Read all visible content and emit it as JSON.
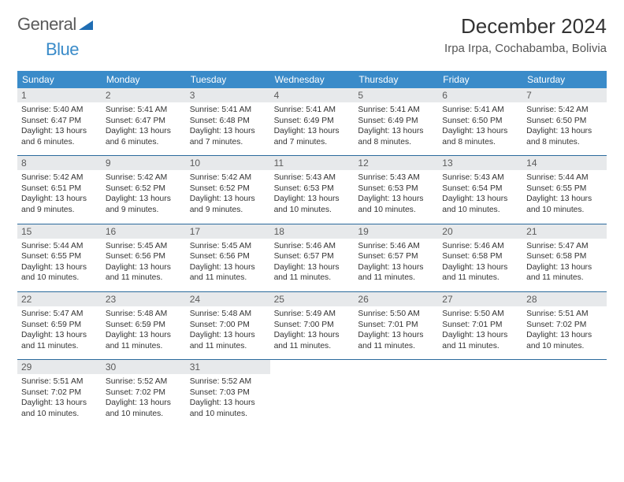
{
  "brand": {
    "part1": "General",
    "part2": "Blue"
  },
  "title": "December 2024",
  "location": "Irpa Irpa, Cochabamba, Bolivia",
  "colors": {
    "header_bg": "#3a8bc9",
    "header_text": "#ffffff",
    "daynum_bg": "#e7e9eb",
    "rule": "#2b6a9c",
    "brand_blue": "#3a8bc9",
    "brand_gray": "#5a5a5a"
  },
  "daynames": [
    "Sunday",
    "Monday",
    "Tuesday",
    "Wednesday",
    "Thursday",
    "Friday",
    "Saturday"
  ],
  "weeks": [
    [
      {
        "n": "1",
        "sr": "5:40 AM",
        "ss": "6:47 PM",
        "dl": "13 hours and 6 minutes."
      },
      {
        "n": "2",
        "sr": "5:41 AM",
        "ss": "6:47 PM",
        "dl": "13 hours and 6 minutes."
      },
      {
        "n": "3",
        "sr": "5:41 AM",
        "ss": "6:48 PM",
        "dl": "13 hours and 7 minutes."
      },
      {
        "n": "4",
        "sr": "5:41 AM",
        "ss": "6:49 PM",
        "dl": "13 hours and 7 minutes."
      },
      {
        "n": "5",
        "sr": "5:41 AM",
        "ss": "6:49 PM",
        "dl": "13 hours and 8 minutes."
      },
      {
        "n": "6",
        "sr": "5:41 AM",
        "ss": "6:50 PM",
        "dl": "13 hours and 8 minutes."
      },
      {
        "n": "7",
        "sr": "5:42 AM",
        "ss": "6:50 PM",
        "dl": "13 hours and 8 minutes."
      }
    ],
    [
      {
        "n": "8",
        "sr": "5:42 AM",
        "ss": "6:51 PM",
        "dl": "13 hours and 9 minutes."
      },
      {
        "n": "9",
        "sr": "5:42 AM",
        "ss": "6:52 PM",
        "dl": "13 hours and 9 minutes."
      },
      {
        "n": "10",
        "sr": "5:42 AM",
        "ss": "6:52 PM",
        "dl": "13 hours and 9 minutes."
      },
      {
        "n": "11",
        "sr": "5:43 AM",
        "ss": "6:53 PM",
        "dl": "13 hours and 10 minutes."
      },
      {
        "n": "12",
        "sr": "5:43 AM",
        "ss": "6:53 PM",
        "dl": "13 hours and 10 minutes."
      },
      {
        "n": "13",
        "sr": "5:43 AM",
        "ss": "6:54 PM",
        "dl": "13 hours and 10 minutes."
      },
      {
        "n": "14",
        "sr": "5:44 AM",
        "ss": "6:55 PM",
        "dl": "13 hours and 10 minutes."
      }
    ],
    [
      {
        "n": "15",
        "sr": "5:44 AM",
        "ss": "6:55 PM",
        "dl": "13 hours and 10 minutes."
      },
      {
        "n": "16",
        "sr": "5:45 AM",
        "ss": "6:56 PM",
        "dl": "13 hours and 11 minutes."
      },
      {
        "n": "17",
        "sr": "5:45 AM",
        "ss": "6:56 PM",
        "dl": "13 hours and 11 minutes."
      },
      {
        "n": "18",
        "sr": "5:46 AM",
        "ss": "6:57 PM",
        "dl": "13 hours and 11 minutes."
      },
      {
        "n": "19",
        "sr": "5:46 AM",
        "ss": "6:57 PM",
        "dl": "13 hours and 11 minutes."
      },
      {
        "n": "20",
        "sr": "5:46 AM",
        "ss": "6:58 PM",
        "dl": "13 hours and 11 minutes."
      },
      {
        "n": "21",
        "sr": "5:47 AM",
        "ss": "6:58 PM",
        "dl": "13 hours and 11 minutes."
      }
    ],
    [
      {
        "n": "22",
        "sr": "5:47 AM",
        "ss": "6:59 PM",
        "dl": "13 hours and 11 minutes."
      },
      {
        "n": "23",
        "sr": "5:48 AM",
        "ss": "6:59 PM",
        "dl": "13 hours and 11 minutes."
      },
      {
        "n": "24",
        "sr": "5:48 AM",
        "ss": "7:00 PM",
        "dl": "13 hours and 11 minutes."
      },
      {
        "n": "25",
        "sr": "5:49 AM",
        "ss": "7:00 PM",
        "dl": "13 hours and 11 minutes."
      },
      {
        "n": "26",
        "sr": "5:50 AM",
        "ss": "7:01 PM",
        "dl": "13 hours and 11 minutes."
      },
      {
        "n": "27",
        "sr": "5:50 AM",
        "ss": "7:01 PM",
        "dl": "13 hours and 11 minutes."
      },
      {
        "n": "28",
        "sr": "5:51 AM",
        "ss": "7:02 PM",
        "dl": "13 hours and 10 minutes."
      }
    ],
    [
      {
        "n": "29",
        "sr": "5:51 AM",
        "ss": "7:02 PM",
        "dl": "13 hours and 10 minutes."
      },
      {
        "n": "30",
        "sr": "5:52 AM",
        "ss": "7:02 PM",
        "dl": "13 hours and 10 minutes."
      },
      {
        "n": "31",
        "sr": "5:52 AM",
        "ss": "7:03 PM",
        "dl": "13 hours and 10 minutes."
      },
      null,
      null,
      null,
      null
    ]
  ],
  "labels": {
    "sunrise": "Sunrise:",
    "sunset": "Sunset:",
    "daylight": "Daylight:"
  }
}
